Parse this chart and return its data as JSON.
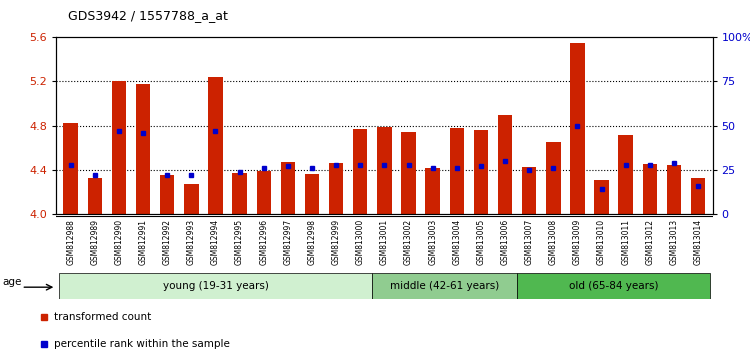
{
  "title": "GDS3942 / 1557788_a_at",
  "samples": [
    "GSM812988",
    "GSM812989",
    "GSM812990",
    "GSM812991",
    "GSM812992",
    "GSM812993",
    "GSM812994",
    "GSM812995",
    "GSM812996",
    "GSM812997",
    "GSM812998",
    "GSM812999",
    "GSM813000",
    "GSM813001",
    "GSM813002",
    "GSM813003",
    "GSM813004",
    "GSM813005",
    "GSM813006",
    "GSM813007",
    "GSM813008",
    "GSM813009",
    "GSM813010",
    "GSM813011",
    "GSM813012",
    "GSM813013",
    "GSM813014"
  ],
  "red_values": [
    4.82,
    4.33,
    5.2,
    5.18,
    4.35,
    4.27,
    5.24,
    4.37,
    4.39,
    4.47,
    4.36,
    4.46,
    4.77,
    4.79,
    4.74,
    4.42,
    4.78,
    4.76,
    4.9,
    4.43,
    4.65,
    5.55,
    4.31,
    4.72,
    4.45,
    4.44,
    4.33
  ],
  "blue_percentile": [
    28,
    22,
    47,
    46,
    22,
    22,
    47,
    24,
    26,
    27,
    26,
    28,
    28,
    28,
    28,
    26,
    26,
    27,
    30,
    25,
    26,
    50,
    14,
    28,
    28,
    29,
    16
  ],
  "groups": [
    {
      "label": "young (19-31 years)",
      "start": 0,
      "end": 13,
      "color": "#d0f0d0"
    },
    {
      "label": "middle (42-61 years)",
      "start": 13,
      "end": 19,
      "color": "#90cc90"
    },
    {
      "label": "old (65-84 years)",
      "start": 19,
      "end": 27,
      "color": "#50b850"
    }
  ],
  "ylim": [
    4.0,
    5.6
  ],
  "yticks_left": [
    4.0,
    4.4,
    4.8,
    5.2,
    5.6
  ],
  "right_yticks": [
    0,
    25,
    50,
    75,
    100
  ],
  "right_ylim": [
    0,
    100
  ],
  "bar_color": "#cc2200",
  "dot_color": "#0000cc",
  "plot_bg": "#ffffff",
  "xticklabel_bg": "#d8d8d8"
}
